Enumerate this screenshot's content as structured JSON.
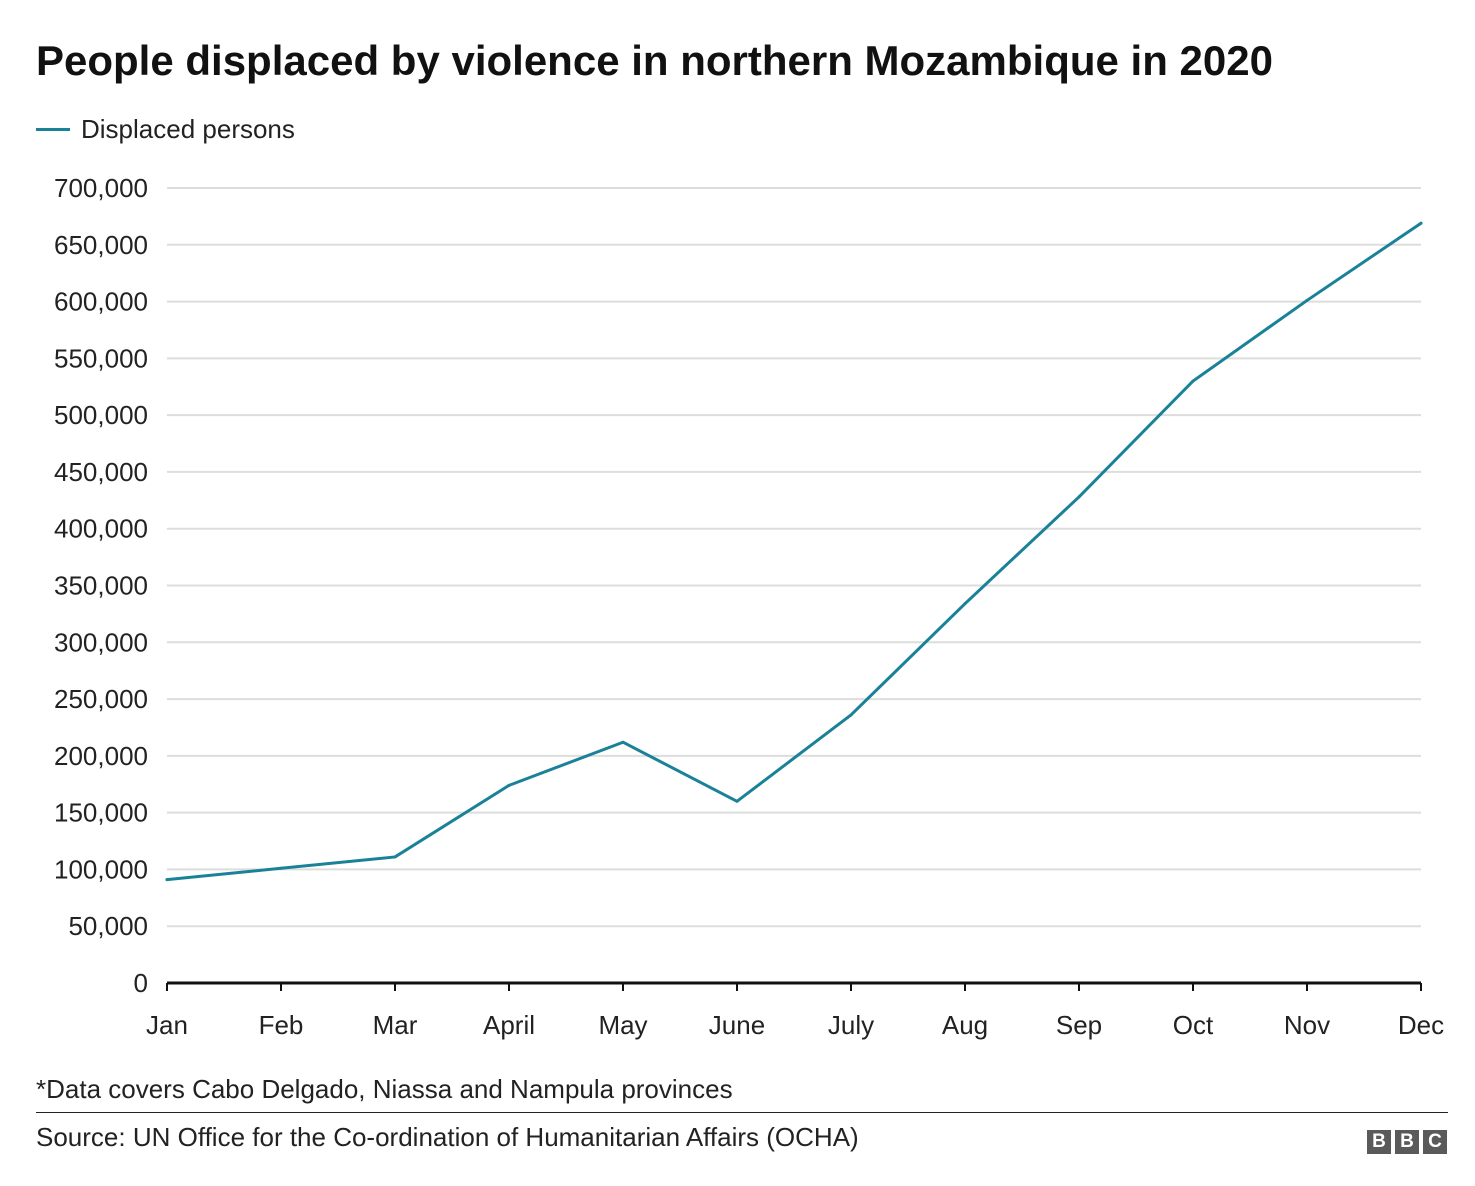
{
  "chart_data": {
    "type": "line",
    "title": "People displaced by violence in northern Mozambique in 2020",
    "categories": [
      "Jan",
      "Feb",
      "Mar",
      "April",
      "May",
      "June",
      "July",
      "Aug",
      "Sep",
      "Oct",
      "Nov",
      "Dec"
    ],
    "series": [
      {
        "name": "Displaced persons",
        "color": "#1a8298",
        "values": [
          91000,
          101000,
          111000,
          174000,
          212000,
          160000,
          236000,
          334000,
          428000,
          530000,
          601000,
          669000
        ]
      }
    ],
    "ylim": [
      0,
      700000
    ],
    "yticks": [
      0,
      50000,
      100000,
      150000,
      200000,
      250000,
      300000,
      350000,
      400000,
      450000,
      500000,
      550000,
      600000,
      650000,
      700000
    ],
    "ytick_labels": [
      "0",
      "50,000",
      "100,000",
      "150,000",
      "200,000",
      "250,000",
      "300,000",
      "350,000",
      "400,000",
      "450,000",
      "500,000",
      "550,000",
      "600,000",
      "650,000",
      "700,000"
    ],
    "xlabel": "",
    "ylabel": "",
    "grid": true,
    "legend_position": "top-left"
  },
  "footnote": "*Data covers Cabo Delgado, Niassa and Nampula provinces",
  "source": "Source: UN Office for the Co-ordination of Humanitarian Affairs (OCHA)",
  "logo": {
    "letters": [
      "B",
      "B",
      "C"
    ]
  },
  "colors": {
    "line": "#1a8298",
    "grid": "#dddddd",
    "axis": "#111111",
    "text": "#222222"
  }
}
